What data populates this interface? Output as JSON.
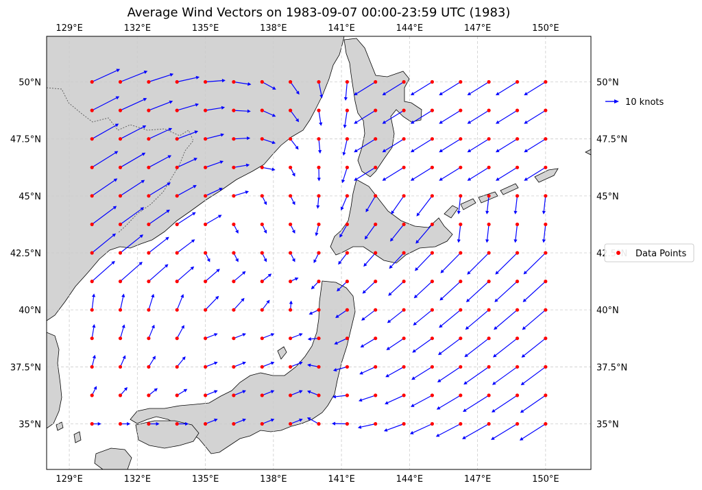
{
  "map": {
    "title": "Average Wind Vectors on 1983-09-07 00:00-23:59 UTC (1983)",
    "lon_range": [
      128,
      152
    ],
    "lat_range": [
      33,
      52
    ],
    "lon_ticks": [
      129,
      132,
      135,
      138,
      141,
      144,
      147,
      150
    ],
    "lat_ticks": [
      35,
      37.5,
      40,
      42.5,
      45,
      47.5,
      50
    ],
    "lon_tick_labels": [
      "129°E",
      "132°E",
      "135°E",
      "138°E",
      "141°E",
      "144°E",
      "147°E",
      "150°E"
    ],
    "lat_tick_labels": [
      "35°N",
      "37.5°N",
      "40°N",
      "42.5°N",
      "45°N",
      "47.5°N",
      "50°N"
    ],
    "land_color": "#d3d3d3",
    "ocean_color": "#ffffff",
    "coast_color": "#000000",
    "arrow_color": "#0000ff",
    "point_color": "#ff0000",
    "grid_color": "#cccccc",
    "grid": true
  },
  "legend": {
    "arrow_label": "10 knots",
    "points_label": "Data Points"
  }
}
